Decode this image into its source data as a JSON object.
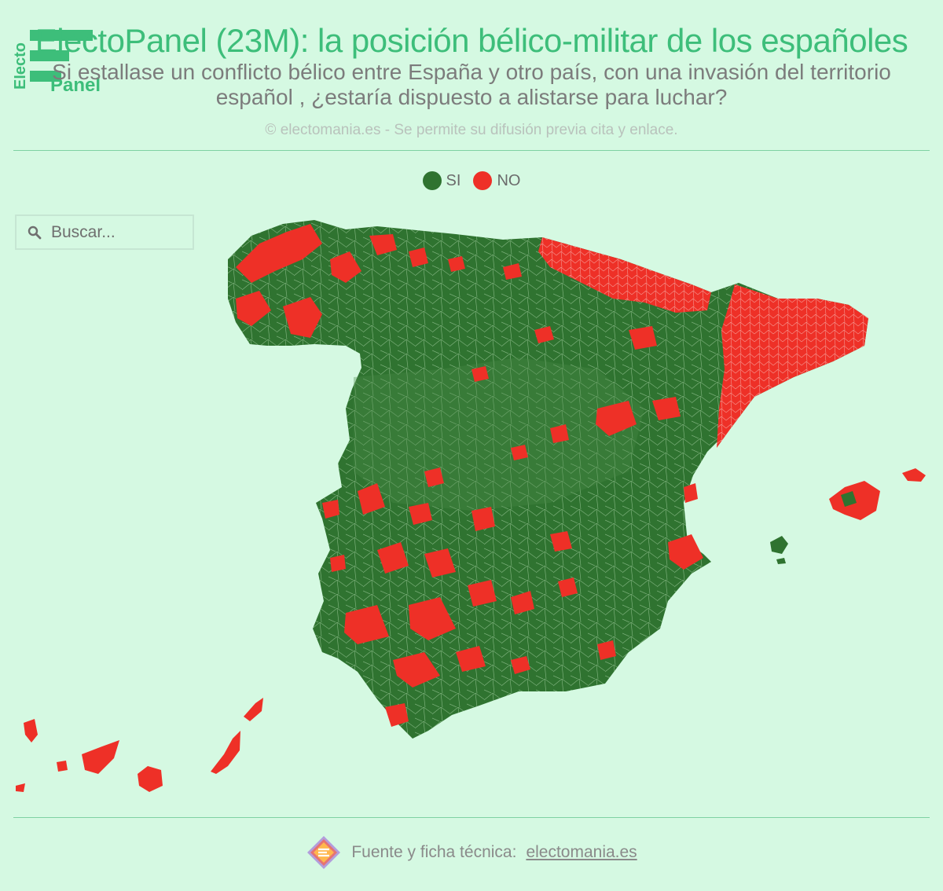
{
  "header": {
    "logo_text_top": "Electo",
    "logo_text_bottom": "Panel",
    "title": "ElectoPanel (23M): la posición bélico-militar de los españoles",
    "subtitle": "Si estallase un conflicto bélico entre España y otro país, con una invasión del territorio español , ¿estaría dispuesto a alistarse para luchar?",
    "credit": "© electomania.es - Se permite su difusión previa cita y enlace."
  },
  "legend": [
    {
      "label": "SI",
      "color": "#2f7330"
    },
    {
      "label": "NO",
      "color": "#ee3027"
    }
  ],
  "search": {
    "placeholder": "Buscar..."
  },
  "footer": {
    "prefix": "Fuente y ficha técnica:",
    "link": "electomania.es"
  }
}
